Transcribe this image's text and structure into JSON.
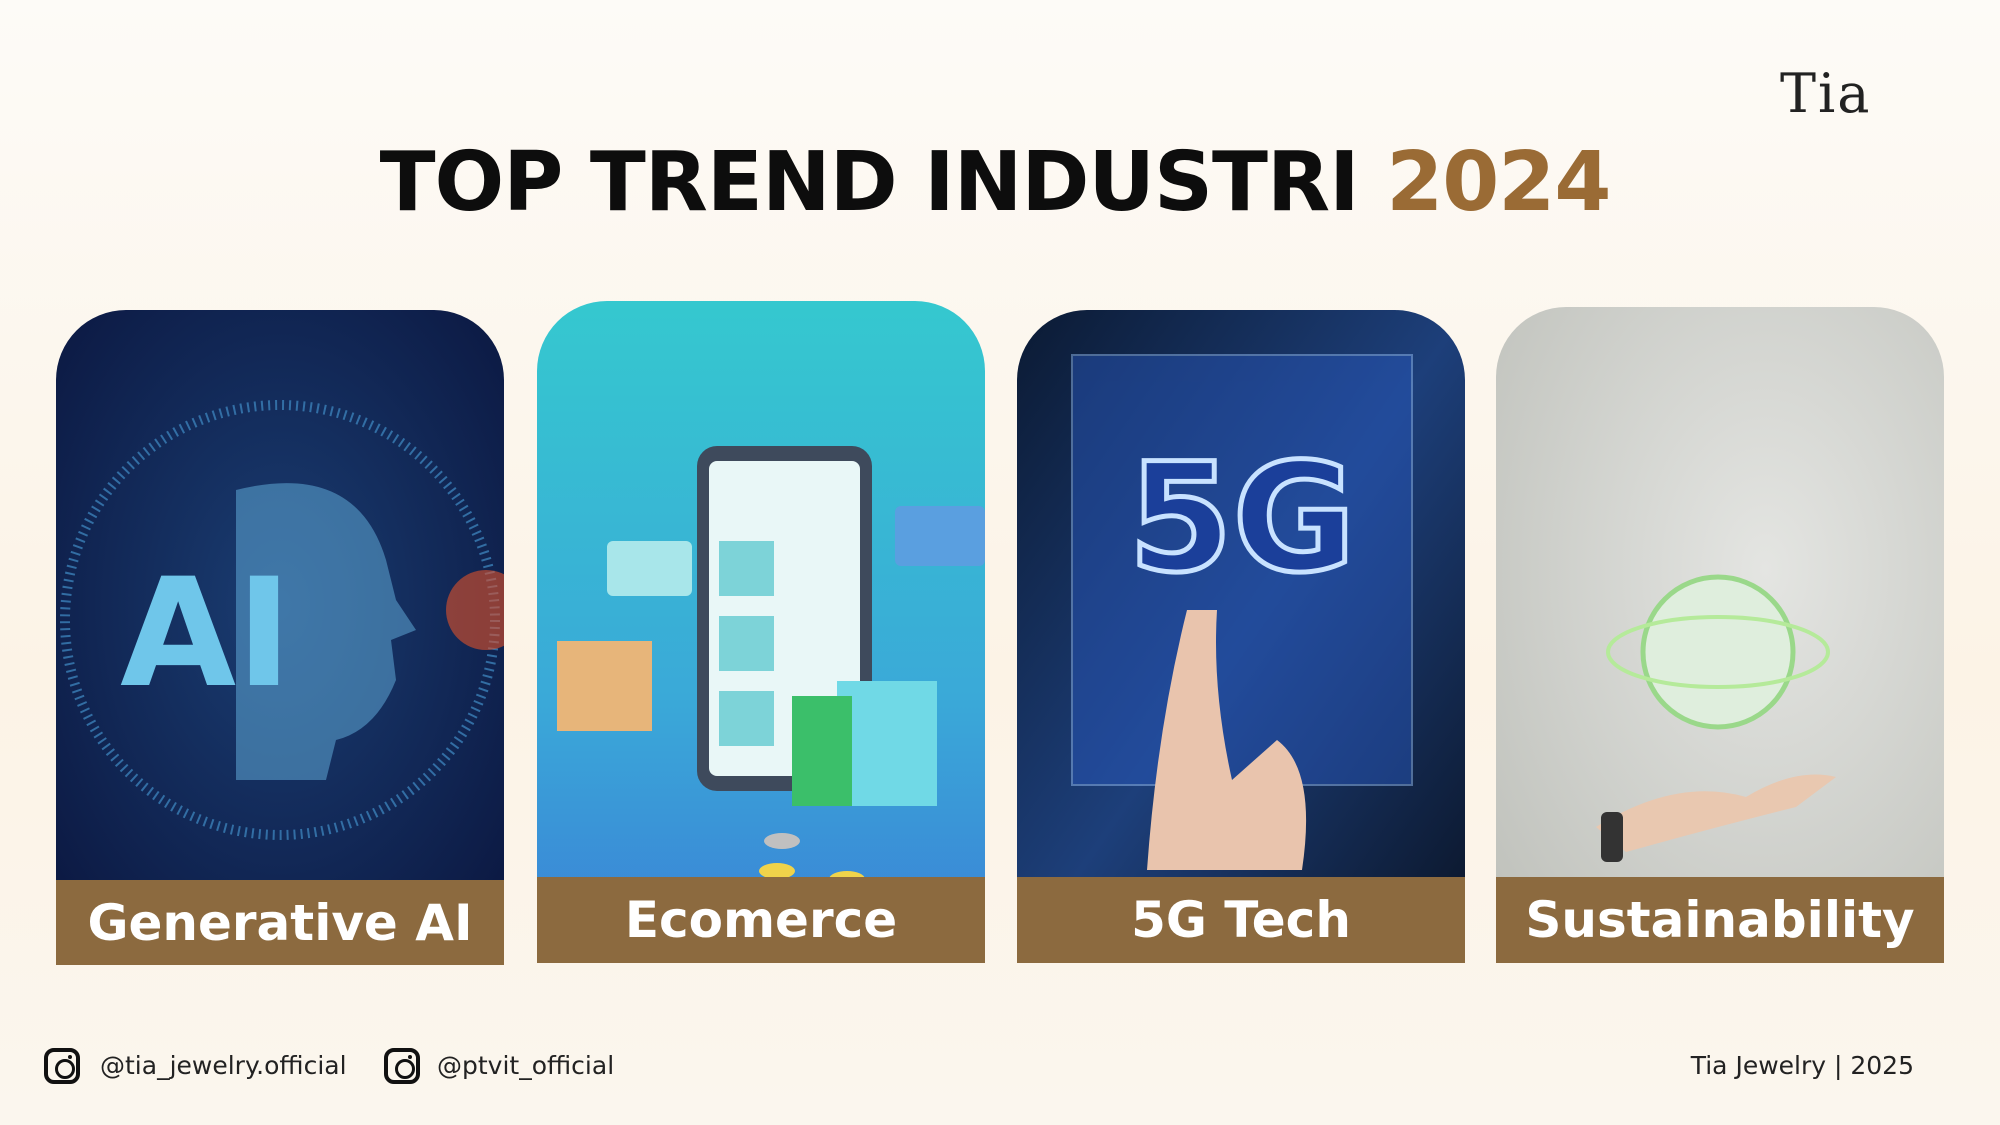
{
  "header": {
    "logo": "Tia",
    "title": "TOP TREND INDUSTRI",
    "year": "2024"
  },
  "cards": [
    {
      "label": "Generative AI",
      "image_text": "AI"
    },
    {
      "label": "Ecomerce"
    },
    {
      "label": "5G Tech",
      "image_text": "5G"
    },
    {
      "label": "Sustainability"
    }
  ],
  "footer": {
    "handles": [
      "@tia_jewelry.official",
      "@ptvit_official"
    ],
    "credit": "Tia Jewelry | 2025"
  }
}
